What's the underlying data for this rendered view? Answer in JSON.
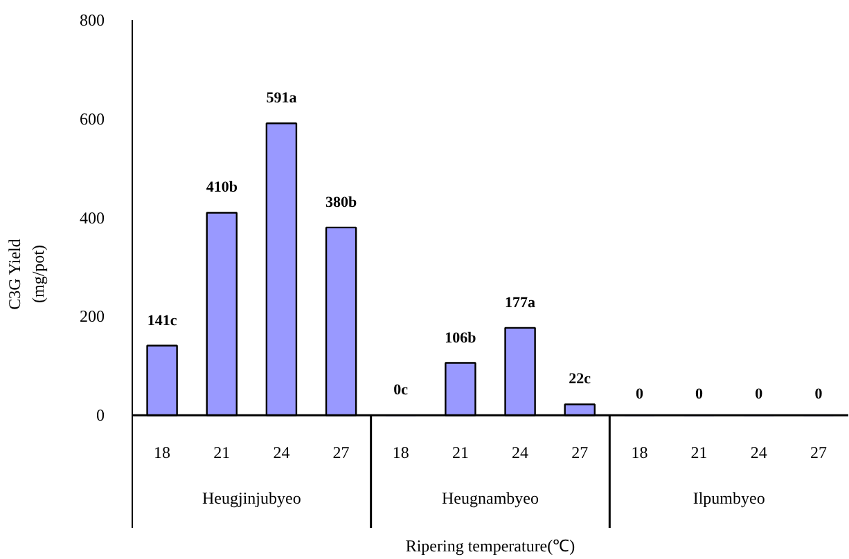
{
  "chart_data": {
    "type": "bar",
    "ylabel": "C3G Yield\n(mg/pot)",
    "xlabel": "Ripering temperature(℃)",
    "categories": [
      "18",
      "21",
      "24",
      "27",
      "18",
      "21",
      "24",
      "27",
      "18",
      "21",
      "24",
      "27"
    ],
    "values": [
      141,
      410,
      591,
      380,
      0,
      106,
      177,
      22,
      0,
      0,
      0,
      0
    ],
    "color": "#9999ff",
    "value_labels": [
      "141c",
      "410b",
      "591a",
      "380b",
      "0c",
      "106b",
      "177a",
      "22c",
      "0",
      "0",
      "0",
      "0"
    ],
    "ylim": [
      0,
      800
    ],
    "yticks": [
      0,
      200,
      400,
      600,
      800
    ],
    "annotations": [
      "Heugjinjubyeo",
      "Heugnambyeo",
      "Ilpumbyeo"
    ]
  }
}
